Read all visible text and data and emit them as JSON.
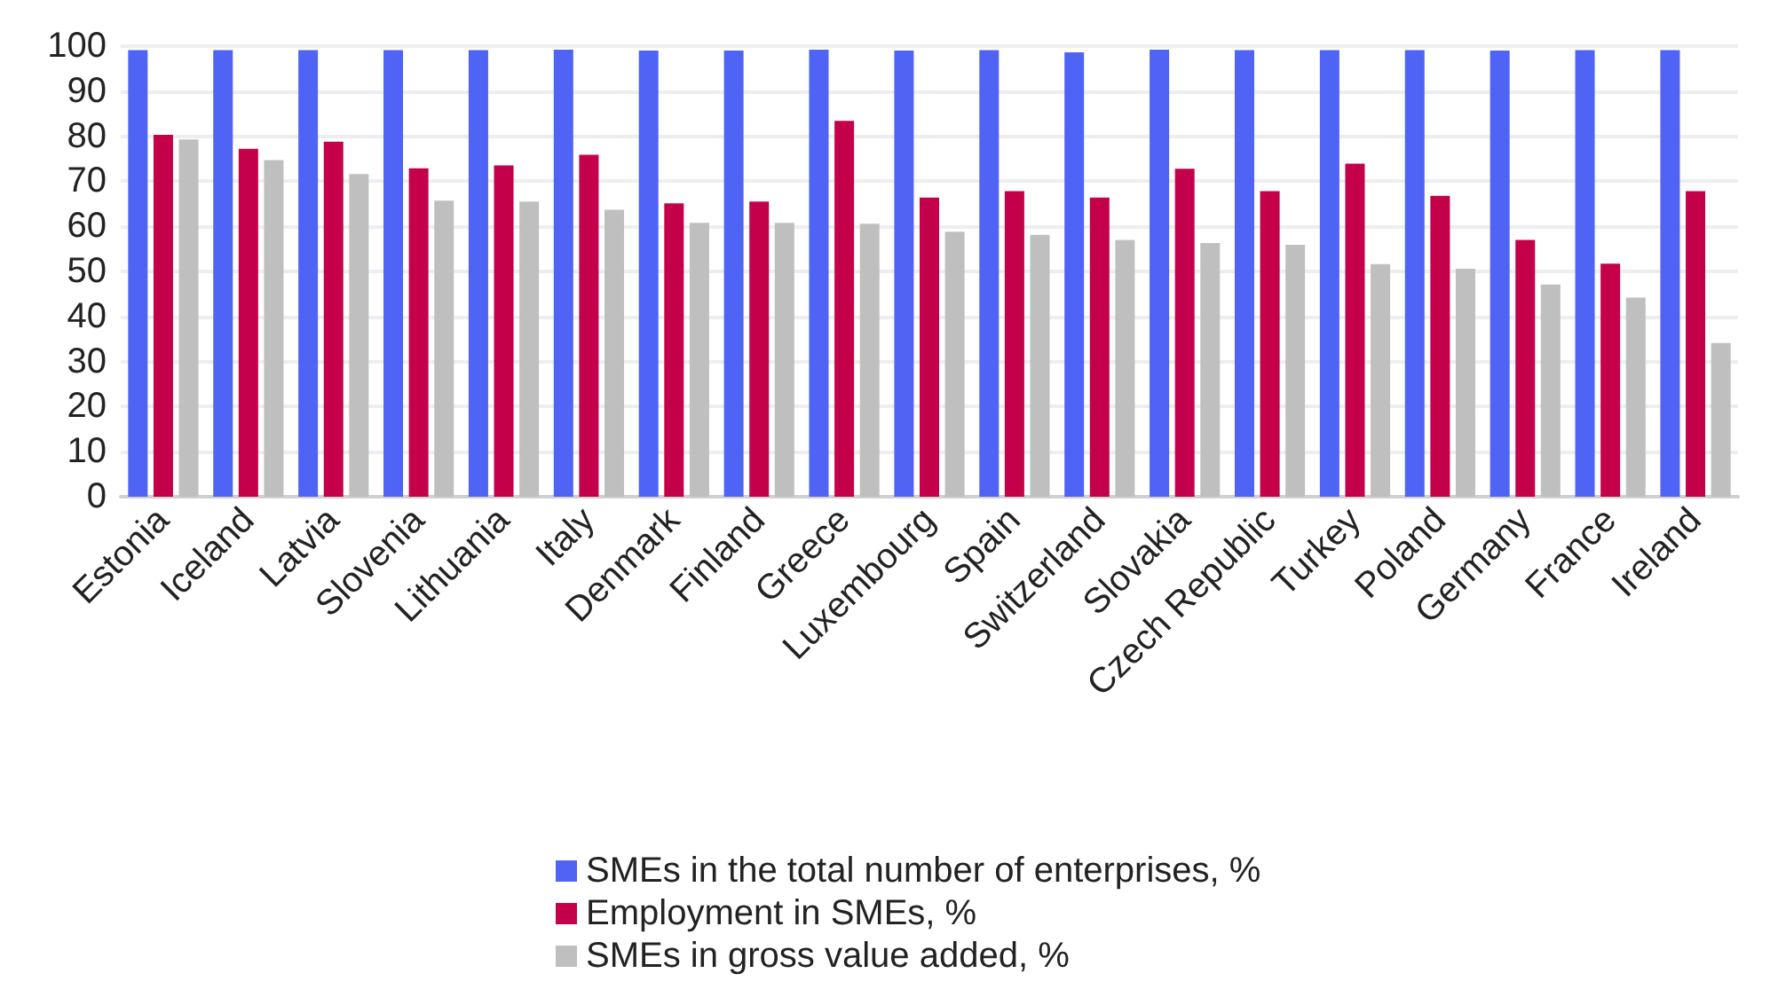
{
  "chart_data": {
    "type": "bar",
    "categories": [
      "Estonia",
      "Iceland",
      "Latvia",
      "Slovenia",
      "Lithuania",
      "Italy",
      "Denmark",
      "Finland",
      "Greece",
      "Luxembourg",
      "Spain",
      "Switzerland",
      "Slovakia",
      "Czech Republic",
      "Turkey",
      "Poland",
      "Germany",
      "France",
      "Ireland"
    ],
    "series": [
      {
        "name": "SMEs in the total number of enterprises, %",
        "color": "#4f63f5",
        "values": [
          99.1,
          99.1,
          99.1,
          99.1,
          99.1,
          99.2,
          99.0,
          99.0,
          99.2,
          99.0,
          99.1,
          98.6,
          99.2,
          99.1,
          99.1,
          99.1,
          99.0,
          99.1,
          99.1
        ]
      },
      {
        "name": "Employment in SMEs, %",
        "color": "#c4004a",
        "values": [
          80.3,
          77.2,
          78.8,
          72.9,
          73.5,
          75.9,
          65.1,
          65.5,
          83.4,
          66.4,
          67.8,
          66.4,
          72.8,
          67.8,
          73.9,
          66.8,
          57.0,
          51.7,
          67.8
        ]
      },
      {
        "name": "SMEs in gross value added, %",
        "color": "#bfbfbf",
        "values": [
          79.3,
          74.7,
          71.6,
          65.7,
          65.5,
          63.7,
          60.8,
          60.8,
          60.6,
          58.8,
          58.1,
          57.0,
          56.3,
          55.9,
          51.6,
          50.6,
          47.1,
          44.2,
          34.1
        ]
      }
    ],
    "ylim": [
      0,
      100
    ],
    "yticks": [
      0,
      10,
      20,
      30,
      40,
      50,
      60,
      70,
      80,
      90,
      100
    ],
    "grid": "y",
    "legend": "bottom"
  }
}
